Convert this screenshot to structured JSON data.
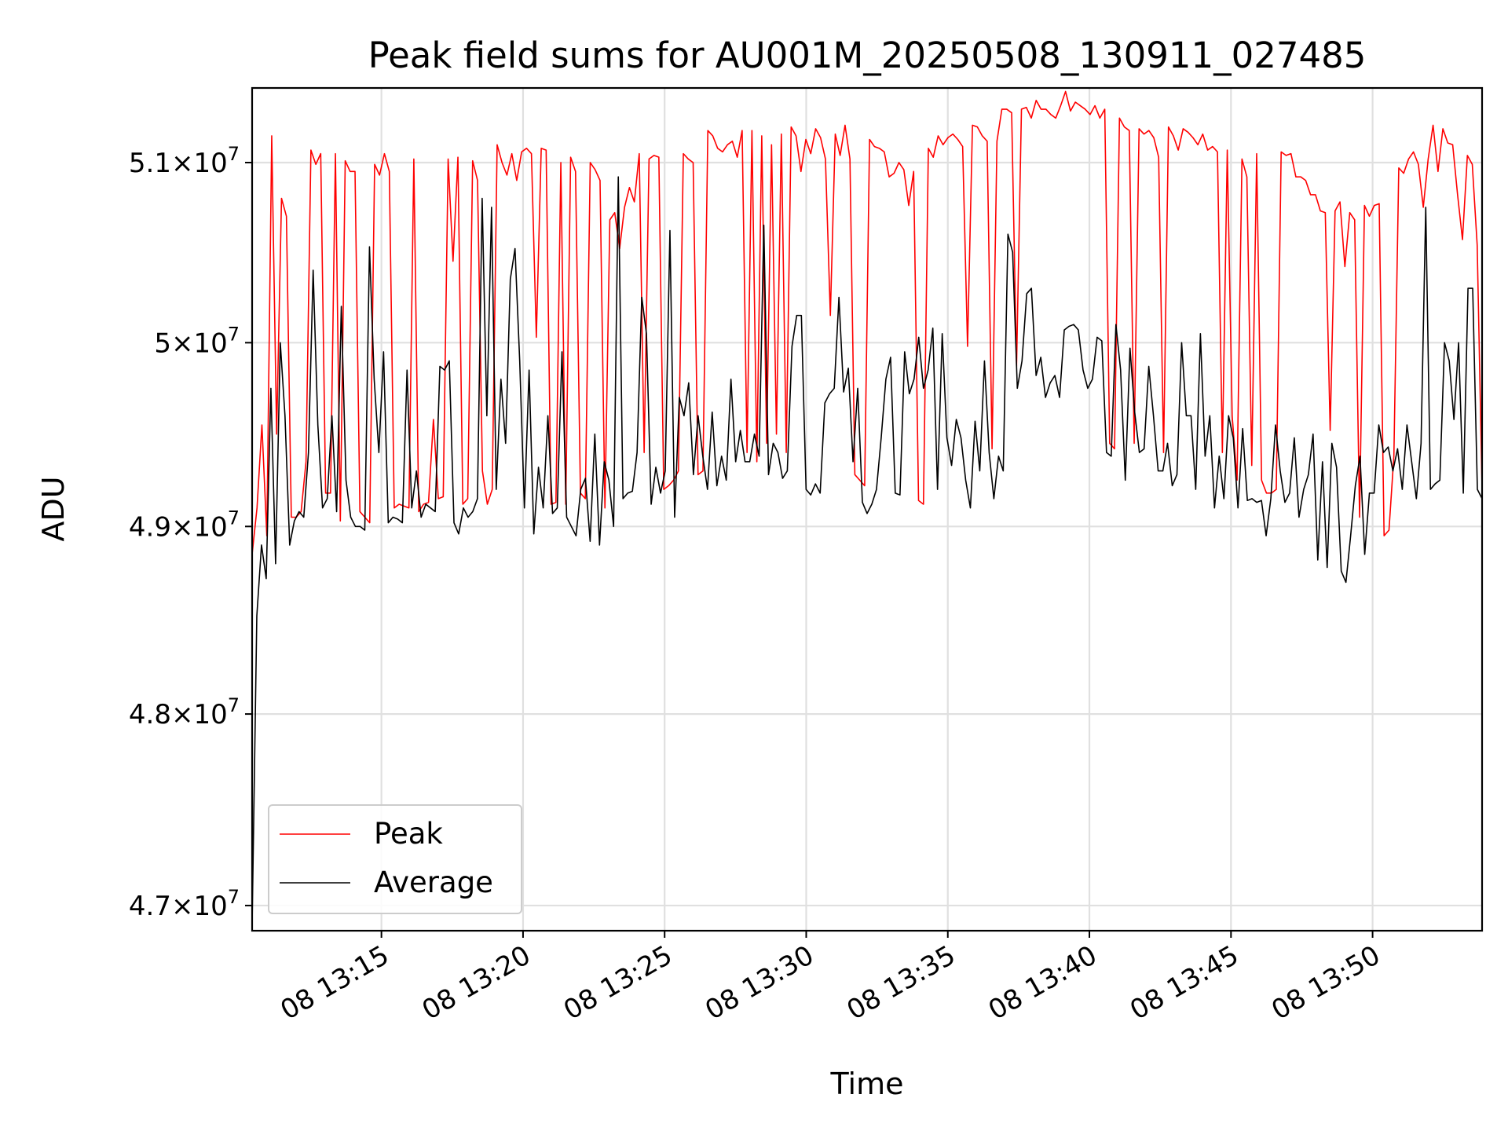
{
  "chart_data": {
    "type": "line",
    "title": "Peak field sums for AU001M_20250508_130911_027485",
    "xlabel": "Time",
    "ylabel": "ADU",
    "x_start": "2025-05-08 13:10:26",
    "x_end": "2025-05-08 13:53:52",
    "xlim": [
      "2025-05-08 13:10:26",
      "2025-05-08 13:53:52"
    ],
    "ylim": [
      46870000,
      51420000
    ],
    "y_scale": "log",
    "x_ticks": [
      {
        "value": "2025-05-08 13:15",
        "label": "08 13:15"
      },
      {
        "value": "2025-05-08 13:20",
        "label": "08 13:20"
      },
      {
        "value": "2025-05-08 13:25",
        "label": "08 13:25"
      },
      {
        "value": "2025-05-08 13:30",
        "label": "08 13:30"
      },
      {
        "value": "2025-05-08 13:35",
        "label": "08 13:35"
      },
      {
        "value": "2025-05-08 13:40",
        "label": "08 13:40"
      },
      {
        "value": "2025-05-08 13:45",
        "label": "08 13:45"
      },
      {
        "value": "2025-05-08 13:50",
        "label": "08 13:50"
      }
    ],
    "y_ticks": [
      {
        "value": 47000000,
        "mantissa": "4.7",
        "exponent": "7"
      },
      {
        "value": 48000000,
        "mantissa": "4.8",
        "exponent": "7"
      },
      {
        "value": 49000000,
        "mantissa": "4.9",
        "exponent": "7"
      },
      {
        "value": 50000000,
        "mantissa": "5",
        "exponent": "7"
      },
      {
        "value": 51000000,
        "mantissa": "5.1",
        "exponent": "7"
      }
    ],
    "grid": true,
    "legend_position": "lower-left",
    "series": [
      {
        "name": "Peak",
        "color": "#ff0000",
        "values": [
          48850000,
          49100000,
          49550000,
          48950000,
          51150000,
          49500000,
          50800000,
          50700000,
          49050000,
          49050000,
          49080000,
          49350000,
          51070000,
          50990000,
          51050000,
          49180000,
          49180000,
          51050000,
          49030000,
          51010000,
          50950000,
          50950000,
          49080000,
          49050000,
          49020000,
          50990000,
          50930000,
          51050000,
          50950000,
          49100000,
          49120000,
          49110000,
          49100000,
          51020000,
          49080000,
          49120000,
          49130000,
          49580000,
          49150000,
          49160000,
          51020000,
          50450000,
          51030000,
          49120000,
          49150000,
          51010000,
          50900000,
          49300000,
          49120000,
          49200000,
          51100000,
          51000000,
          50930000,
          51050000,
          50900000,
          51060000,
          51080000,
          51050000,
          50030000,
          51080000,
          51070000,
          49120000,
          49130000,
          51000000,
          49120000,
          51030000,
          50950000,
          49180000,
          49150000,
          51000000,
          50960000,
          50900000,
          49100000,
          50680000,
          50720000,
          50520000,
          50750000,
          50860000,
          50780000,
          51050000,
          49400000,
          51020000,
          51040000,
          51030000,
          49200000,
          49220000,
          49250000,
          49300000,
          51050000,
          51020000,
          51000000,
          49280000,
          49300000,
          51180000,
          51150000,
          51080000,
          51060000,
          51100000,
          51120000,
          51030000,
          51180000,
          49400000,
          51180000,
          49350000,
          51150000,
          49450000,
          51100000,
          49500000,
          51160000,
          49400000,
          51200000,
          51150000,
          50950000,
          51130000,
          51050000,
          51190000,
          51140000,
          51020000,
          50150000,
          51160000,
          51040000,
          51210000,
          51020000,
          49280000,
          49250000,
          49220000,
          51130000,
          51090000,
          51080000,
          51060000,
          50920000,
          50940000,
          51000000,
          50960000,
          50760000,
          50950000,
          49140000,
          49120000,
          51080000,
          51030000,
          51150000,
          51100000,
          51140000,
          51160000,
          51130000,
          51090000,
          49980000,
          51210000,
          51200000,
          51150000,
          51120000,
          49420000,
          51120000,
          51300000,
          51300000,
          51280000,
          49870000,
          51300000,
          51310000,
          51250000,
          51350000,
          51300000,
          51300000,
          51270000,
          51250000,
          51320000,
          51400000,
          51290000,
          51340000,
          51320000,
          51300000,
          51270000,
          51320000,
          51250000,
          51300000,
          49450000,
          49420000,
          51250000,
          51200000,
          51180000,
          49450000,
          51190000,
          51160000,
          51180000,
          51140000,
          51030000,
          49400000,
          51200000,
          51150000,
          51070000,
          51190000,
          51170000,
          51140000,
          51100000,
          51160000,
          51070000,
          51090000,
          51060000,
          49400000,
          51070000,
          49600000,
          49250000,
          51020000,
          50920000,
          49330000,
          51050000,
          49250000,
          49180000,
          49180000,
          49200000,
          51060000,
          51040000,
          51050000,
          50920000,
          50920000,
          50900000,
          50820000,
          50820000,
          50730000,
          50720000,
          49520000,
          50730000,
          50780000,
          50420000,
          50720000,
          50680000,
          49050000,
          50760000,
          50700000,
          50760000,
          50770000,
          48950000,
          48980000,
          49380000,
          50970000,
          50940000,
          51020000,
          51060000,
          50990000,
          50750000,
          51020000,
          51210000,
          50950000,
          51190000,
          51110000,
          51100000,
          50820000,
          50570000,
          51040000,
          50990000,
          50540000,
          49200000
        ]
      },
      {
        "name": "Average",
        "color": "#000000",
        "values": [
          46900000,
          48520000,
          48900000,
          48720000,
          49750000,
          48800000,
          50000000,
          49600000,
          48900000,
          49030000,
          49080000,
          49050000,
          49400000,
          50400000,
          49550000,
          49100000,
          49150000,
          49600000,
          49080000,
          50200000,
          49250000,
          49050000,
          49000000,
          49000000,
          48980000,
          50530000,
          49800000,
          49400000,
          49950000,
          49020000,
          49050000,
          49040000,
          49020000,
          49850000,
          49100000,
          49300000,
          49050000,
          49120000,
          49100000,
          49080000,
          49870000,
          49850000,
          49900000,
          49020000,
          48960000,
          49100000,
          49050000,
          49080000,
          49150000,
          50800000,
          49600000,
          50750000,
          49200000,
          49800000,
          49450000,
          50350000,
          50520000,
          49900000,
          49100000,
          49850000,
          48960000,
          49320000,
          49100000,
          49600000,
          49070000,
          49100000,
          49950000,
          49050000,
          49000000,
          48950000,
          49200000,
          49260000,
          48920000,
          49500000,
          48900000,
          49350000,
          49250000,
          49000000,
          50920000,
          49150000,
          49180000,
          49190000,
          49400000,
          50250000,
          50050000,
          49120000,
          49320000,
          49180000,
          49300000,
          50620000,
          49050000,
          49700000,
          49600000,
          49780000,
          49280000,
          49600000,
          49380000,
          49200000,
          49620000,
          49220000,
          49380000,
          49250000,
          49800000,
          49350000,
          49520000,
          49350000,
          49350000,
          49500000,
          49380000,
          50650000,
          49280000,
          49450000,
          49400000,
          49260000,
          49300000,
          49980000,
          50150000,
          50150000,
          49200000,
          49170000,
          49230000,
          49180000,
          49670000,
          49720000,
          49750000,
          50250000,
          49730000,
          49860000,
          49350000,
          49750000,
          49130000,
          49070000,
          49120000,
          49200000,
          49480000,
          49800000,
          49920000,
          49180000,
          49170000,
          49950000,
          49720000,
          49800000,
          50030000,
          49750000,
          49850000,
          50080000,
          49200000,
          50050000,
          49480000,
          49330000,
          49580000,
          49480000,
          49250000,
          49100000,
          49570000,
          49300000,
          49900000,
          49400000,
          49150000,
          49380000,
          49300000,
          50600000,
          50500000,
          49750000,
          49900000,
          50270000,
          50300000,
          49820000,
          49920000,
          49700000,
          49780000,
          49820000,
          49700000,
          50070000,
          50090000,
          50100000,
          50070000,
          49850000,
          49750000,
          49800000,
          50030000,
          50010000,
          49400000,
          49380000,
          50100000,
          49850000,
          49250000,
          49970000,
          49620000,
          49400000,
          49420000,
          49870000,
          49600000,
          49300000,
          49300000,
          49450000,
          49220000,
          49280000,
          50000000,
          49600000,
          49600000,
          49200000,
          50050000,
          49380000,
          49600000,
          49100000,
          49380000,
          49150000,
          49600000,
          49480000,
          49100000,
          49530000,
          49140000,
          49150000,
          49130000,
          49140000,
          48950000,
          49150000,
          49550000,
          49300000,
          49130000,
          49180000,
          49480000,
          49050000,
          49200000,
          49280000,
          49500000,
          48820000,
          49350000,
          48780000,
          49450000,
          49320000,
          48760000,
          48700000,
          48950000,
          49220000,
          49380000,
          48850000,
          49180000,
          49180000,
          49550000,
          49400000,
          49430000,
          49300000,
          49420000,
          49200000,
          49550000,
          49350000,
          49150000,
          49450000,
          50750000,
          49200000,
          49230000,
          49250000,
          50000000,
          49900000,
          49580000,
          50000000,
          49180000,
          50300000,
          50300000,
          49200000,
          49150000
        ]
      }
    ]
  }
}
